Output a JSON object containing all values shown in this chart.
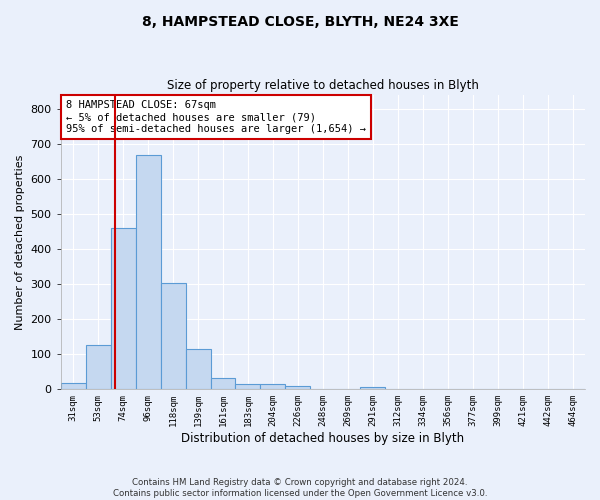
{
  "title1": "8, HAMPSTEAD CLOSE, BLYTH, NE24 3XE",
  "title2": "Size of property relative to detached houses in Blyth",
  "xlabel": "Distribution of detached houses by size in Blyth",
  "ylabel": "Number of detached properties",
  "footer": "Contains HM Land Registry data © Crown copyright and database right 2024.\nContains public sector information licensed under the Open Government Licence v3.0.",
  "bin_labels": [
    "31sqm",
    "53sqm",
    "74sqm",
    "96sqm",
    "118sqm",
    "139sqm",
    "161sqm",
    "183sqm",
    "204sqm",
    "226sqm",
    "248sqm",
    "269sqm",
    "291sqm",
    "312sqm",
    "334sqm",
    "356sqm",
    "377sqm",
    "399sqm",
    "421sqm",
    "442sqm",
    "464sqm"
  ],
  "bar_values": [
    17,
    126,
    460,
    667,
    303,
    115,
    32,
    14,
    14,
    10,
    0,
    0,
    8,
    0,
    0,
    0,
    0,
    0,
    0,
    0,
    0
  ],
  "bar_color": "#c5d8f0",
  "bar_edge_color": "#5b9bd5",
  "ylim": [
    0,
    840
  ],
  "yticks": [
    0,
    100,
    200,
    300,
    400,
    500,
    600,
    700,
    800
  ],
  "annotation_text": "8 HAMPSTEAD CLOSE: 67sqm\n← 5% of detached houses are smaller (79)\n95% of semi-detached houses are larger (1,654) →",
  "annotation_box_color": "#ffffff",
  "annotation_box_edge_color": "#cc0000",
  "vline_color": "#cc0000",
  "background_color": "#eaf0fb",
  "plot_bg_color": "#eaf0fb",
  "vline_x_data": 1.67
}
